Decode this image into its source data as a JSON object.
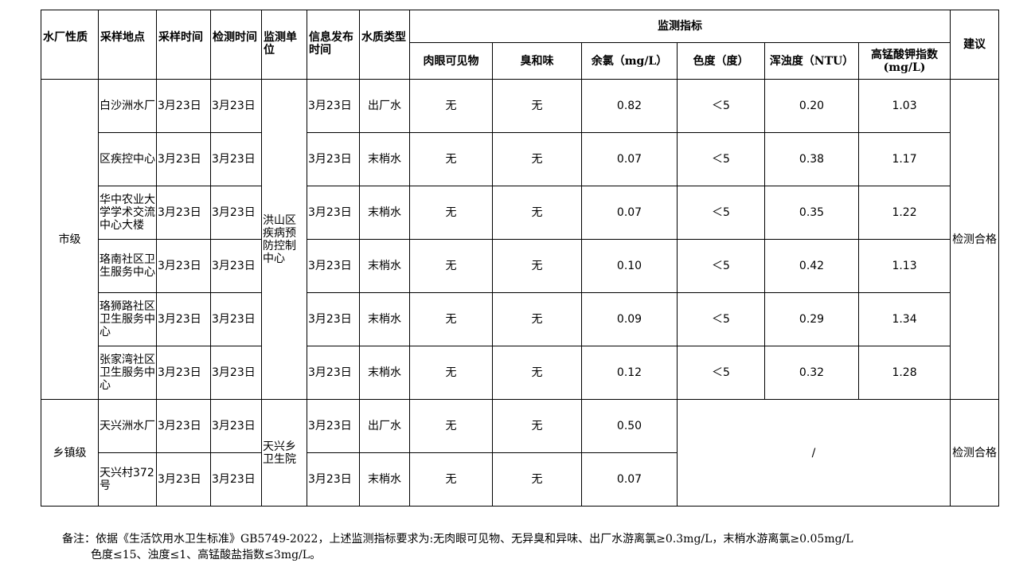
{
  "header": {
    "type": "水厂性质",
    "location": "采样地点",
    "sample_time": "采样时间",
    "test_time": "检测时间",
    "unit": "监测单位",
    "publish_time": "信息发布时间",
    "water_type": "水质类型",
    "indicators": "监测指标",
    "advice": "建议",
    "cols": [
      "肉眼可见物",
      "臭和味",
      "余氯（mg/L）",
      "色度（度）",
      "浑浊度（NTU）",
      "高锰酸钾指数(mg/L)"
    ]
  },
  "groups": [
    {
      "type": "市级",
      "unit": "洪山区疾病预防控制中心",
      "advice": "检测合格",
      "rows": [
        {
          "loc": "白沙洲水厂",
          "st": "3月23日",
          "tt": "3月23日",
          "pt": "3月23日",
          "wt": "出厂水",
          "v": [
            "无",
            "无",
            "0.82",
            "＜5",
            "0.20",
            "1.03"
          ]
        },
        {
          "loc": "区疾控中心",
          "st": "3月23日",
          "tt": "3月23日",
          "pt": "3月23日",
          "wt": "末梢水",
          "v": [
            "无",
            "无",
            "0.07",
            "＜5",
            "0.38",
            "1.17"
          ]
        },
        {
          "loc": "华中农业大学学术交流中心大楼",
          "st": "3月23日",
          "tt": "3月23日",
          "pt": "3月23日",
          "wt": "末梢水",
          "v": [
            "无",
            "无",
            "0.07",
            "＜5",
            "0.35",
            "1.22"
          ]
        },
        {
          "loc": "珞南社区卫生服务中心",
          "st": "3月23日",
          "tt": "3月23日",
          "pt": "3月23日",
          "wt": "末梢水",
          "v": [
            "无",
            "无",
            "0.10",
            "＜5",
            "0.42",
            "1.13"
          ]
        },
        {
          "loc": "珞狮路社区卫生服务中心",
          "st": "3月23日",
          "tt": "3月23日",
          "pt": "3月23日",
          "wt": "末梢水",
          "v": [
            "无",
            "无",
            "0.09",
            "＜5",
            "0.29",
            "1.34"
          ]
        },
        {
          "loc": "张家湾社区卫生服务中心",
          "st": "3月23日",
          "tt": "3月23日",
          "pt": "3月23日",
          "wt": "末梢水",
          "v": [
            "无",
            "无",
            "0.12",
            "＜5",
            "0.32",
            "1.28"
          ]
        }
      ]
    },
    {
      "type": "乡镇级",
      "unit": "天兴乡卫生院",
      "advice": "检测合格",
      "na": "/",
      "rows": [
        {
          "loc": "天兴洲水厂",
          "st": "3月23日",
          "tt": "3月23日",
          "pt": "3月23日",
          "wt": "出厂水",
          "v": [
            "无",
            "无",
            "0.50"
          ]
        },
        {
          "loc": "天兴村372号",
          "st": "3月23日",
          "tt": "3月23日",
          "pt": "3月23日",
          "wt": "末梢水",
          "v": [
            "无",
            "无",
            "0.07"
          ]
        }
      ]
    }
  ],
  "note": {
    "line1": "备注：依据《生活饮用水卫生标准》GB5749-2022，上述监测指标要求为:无肉眼可见物、无异臭和异味、出厂水游离氯≥0.3mg/L，末梢水游离氯≥0.05mg/L",
    "line2": "色度≤15、浊度≤1、高锰酸盐指数≤3mg/L。"
  }
}
